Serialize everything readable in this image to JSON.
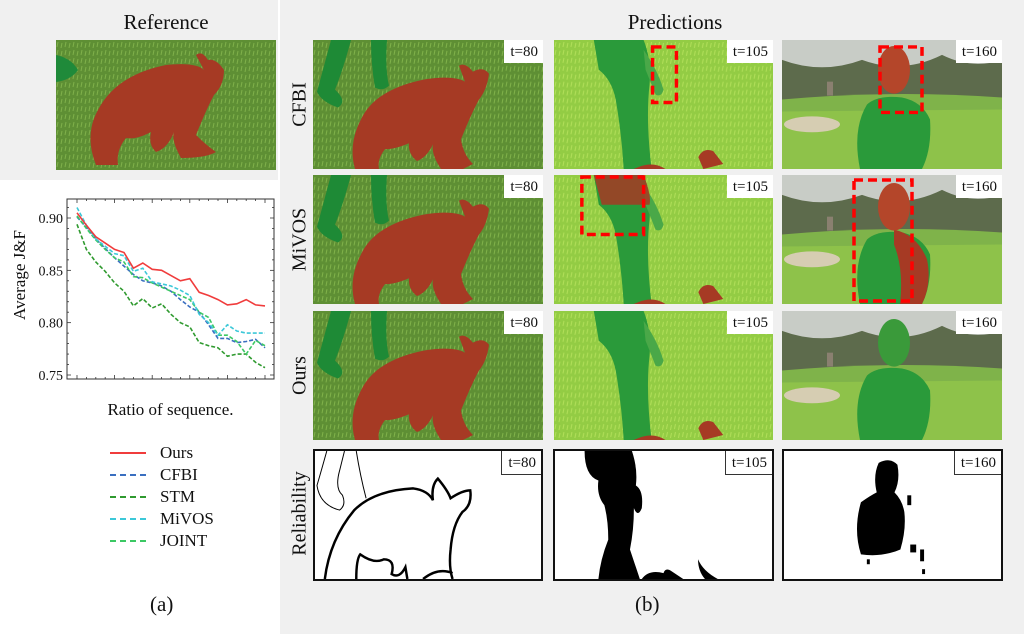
{
  "figure": {
    "left_title": "Reference",
    "right_title": "Predictions",
    "caption_a": "(a)",
    "caption_b": "(b)"
  },
  "rows": [
    {
      "label": "CFBI"
    },
    {
      "label": "MiVOS"
    },
    {
      "label": "Ours"
    },
    {
      "label": "Reliability"
    }
  ],
  "columns": [
    {
      "t_label": "t=80"
    },
    {
      "t_label": "t=105"
    },
    {
      "t_label": "t=160"
    }
  ],
  "colors": {
    "background_panel": "#f0f0f0",
    "mask_object_red": "#a63a24",
    "mask_person_green": "#2a9a3a",
    "grass": "#6fa03a",
    "bright_grass": "#9cd44a",
    "error_box": "#ff0000"
  },
  "chart_data": {
    "type": "line",
    "title": "",
    "xlabel": "Ratio of sequence.",
    "ylabel": "Average J&F",
    "xlim": [
      0.0,
      1.0
    ],
    "ylim": [
      0.75,
      0.91
    ],
    "xticks": [
      "0.0",
      "0.2",
      "0.4",
      "0.6",
      "0.8",
      "1.0"
    ],
    "yticks": [
      "0.75",
      "0.80",
      "0.85",
      "0.90"
    ],
    "grid": false,
    "legend_position": "below",
    "x": [
      0.0,
      0.05,
      0.1,
      0.15,
      0.2,
      0.25,
      0.3,
      0.35,
      0.4,
      0.45,
      0.5,
      0.55,
      0.6,
      0.65,
      0.7,
      0.75,
      0.8,
      0.85,
      0.9,
      0.95,
      1.0
    ],
    "series": [
      {
        "name": "Ours",
        "color": "#f03c3c",
        "dash": "solid",
        "values": [
          0.905,
          0.893,
          0.882,
          0.876,
          0.87,
          0.867,
          0.852,
          0.857,
          0.851,
          0.85,
          0.845,
          0.84,
          0.842,
          0.829,
          0.826,
          0.822,
          0.817,
          0.818,
          0.822,
          0.817,
          0.816
        ]
      },
      {
        "name": "CFBI",
        "color": "#3a6fc0",
        "dash": "dashed",
        "values": [
          0.901,
          0.891,
          0.88,
          0.871,
          0.862,
          0.854,
          0.846,
          0.84,
          0.838,
          0.835,
          0.83,
          0.822,
          0.815,
          0.81,
          0.798,
          0.785,
          0.785,
          0.781,
          0.782,
          0.784,
          0.776
        ]
      },
      {
        "name": "STM",
        "color": "#2f9a2f",
        "dash": "dashed",
        "values": [
          0.894,
          0.87,
          0.858,
          0.849,
          0.838,
          0.83,
          0.816,
          0.823,
          0.814,
          0.818,
          0.808,
          0.8,
          0.796,
          0.781,
          0.778,
          0.776,
          0.768,
          0.77,
          0.77,
          0.762,
          0.757
        ]
      },
      {
        "name": "MiVOS",
        "color": "#3cc8d8",
        "dash": "dashed",
        "values": [
          0.91,
          0.893,
          0.88,
          0.873,
          0.866,
          0.864,
          0.849,
          0.852,
          0.839,
          0.837,
          0.835,
          0.831,
          0.826,
          0.808,
          0.8,
          0.788,
          0.798,
          0.792,
          0.79,
          0.79,
          0.79
        ]
      },
      {
        "name": "JOINT",
        "color": "#3cc864",
        "dash": "dashed",
        "values": [
          0.902,
          0.89,
          0.879,
          0.87,
          0.862,
          0.858,
          0.844,
          0.843,
          0.838,
          0.834,
          0.83,
          0.826,
          0.822,
          0.81,
          0.805,
          0.788,
          0.788,
          0.782,
          0.77,
          0.783,
          0.778
        ]
      }
    ]
  }
}
